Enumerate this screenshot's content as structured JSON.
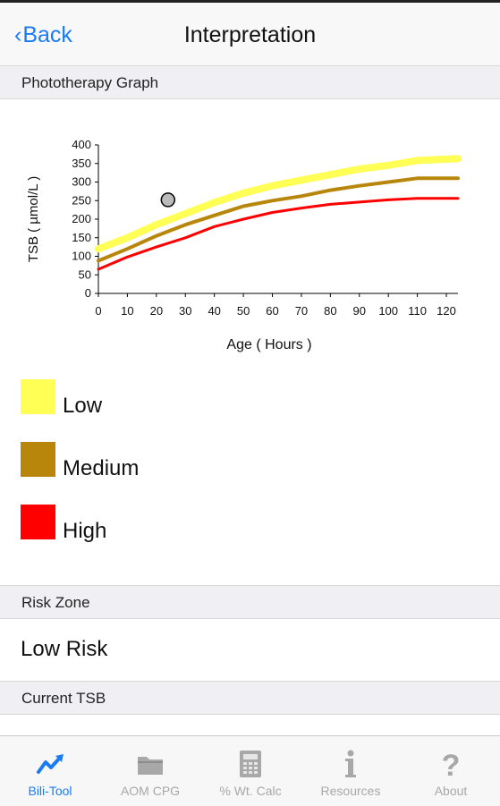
{
  "nav": {
    "back_label": "Back",
    "title": "Interpretation"
  },
  "sections": {
    "graph_header": "Phototherapy Graph",
    "risk_header": "Risk Zone",
    "risk_value": "Low Risk",
    "tsb_header": "Current TSB"
  },
  "legend": [
    {
      "label": "Low",
      "color": "#ffff55"
    },
    {
      "label": "Medium",
      "color": "#b8860b"
    },
    {
      "label": "High",
      "color": "#ff0000"
    }
  ],
  "chart_data": {
    "type": "line",
    "xlabel": "Age ( Hours )",
    "ylabel": "TSB ( µmol/L )",
    "xlim": [
      0,
      124
    ],
    "ylim": [
      0,
      400
    ],
    "xticks": [
      0,
      10,
      20,
      30,
      40,
      50,
      60,
      70,
      80,
      90,
      100,
      110,
      120
    ],
    "yticks": [
      0,
      50,
      100,
      150,
      200,
      250,
      300,
      350,
      400
    ],
    "x": [
      0,
      10,
      20,
      30,
      40,
      50,
      60,
      70,
      80,
      90,
      100,
      110,
      124
    ],
    "series": [
      {
        "name": "Low",
        "color": "#ffff55",
        "values": [
          120,
          150,
          185,
          215,
          245,
          270,
          290,
          305,
          320,
          335,
          345,
          358,
          363
        ]
      },
      {
        "name": "Medium",
        "color": "#b8860b",
        "values": [
          88,
          120,
          155,
          185,
          210,
          235,
          250,
          262,
          278,
          290,
          300,
          310,
          310
        ]
      },
      {
        "name": "High",
        "color": "#ff0000",
        "values": [
          65,
          98,
          125,
          150,
          180,
          200,
          218,
          230,
          240,
          246,
          252,
          256,
          256
        ]
      }
    ],
    "points": [
      {
        "x": 24,
        "y": 252,
        "color": "#bbbbbb"
      }
    ]
  },
  "tabs": [
    {
      "label": "Bili-Tool",
      "icon": "trend-chart-icon",
      "active": true
    },
    {
      "label": "AOM CPG",
      "icon": "folder-icon",
      "active": false
    },
    {
      "label": "% Wt. Calc",
      "icon": "calculator-icon",
      "active": false
    },
    {
      "label": "Resources",
      "icon": "info-icon",
      "active": false
    },
    {
      "label": "About",
      "icon": "question-icon",
      "active": false
    }
  ]
}
